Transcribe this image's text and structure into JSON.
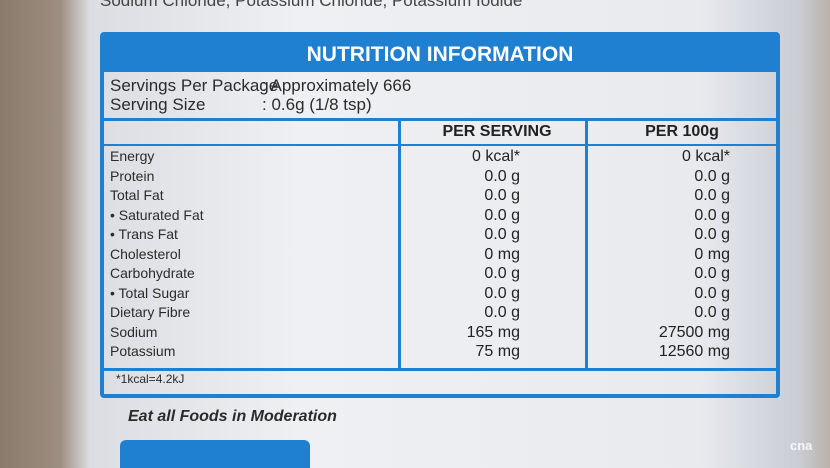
{
  "header": {
    "ingredients": "Sodium Chloride, Potassium Chloride, Potassium Iodide",
    "title": "NUTRITION INFORMATION"
  },
  "servings": [
    {
      "label": "Servings Per Package",
      "value": ": Approximately 666"
    },
    {
      "label": "Serving Size",
      "value": ": 0.6g (1/8 tsp)"
    }
  ],
  "table": {
    "columns": [
      "PER SERVING",
      "PER 100g"
    ],
    "rows": [
      [
        "Energy",
        "0 kcal*",
        "0 kcal*"
      ],
      [
        "Protein",
        "0.0 g",
        "0.0 g"
      ],
      [
        "Total Fat",
        "0.0 g",
        "0.0 g"
      ],
      [
        "• Saturated Fat",
        "0.0 g",
        "0.0 g"
      ],
      [
        "• Trans Fat",
        "0.0 g",
        "0.0 g"
      ],
      [
        "Cholesterol",
        "0 mg",
        "0 mg"
      ],
      [
        "Carbohydrate",
        "0.0 g",
        "0.0 g"
      ],
      [
        "• Total Sugar",
        "0.0 g",
        "0.0 g"
      ],
      [
        "Dietary Fibre",
        "0.0 g",
        "0.0 g"
      ],
      [
        "Sodium",
        "165 mg",
        "27500 mg"
      ],
      [
        "Potassium",
        "75 mg",
        "12560 mg"
      ]
    ],
    "footnote": "*1kcal=4.2kJ"
  },
  "footer": {
    "note": "Eat all Foods in Moderation",
    "logo": "cna"
  }
}
